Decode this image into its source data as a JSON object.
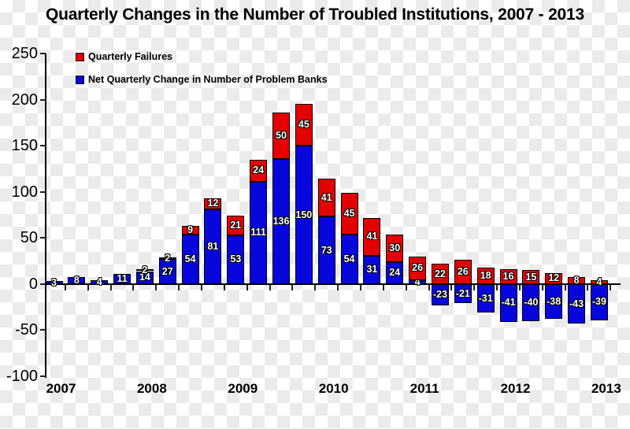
{
  "title": "Quarterly Changes in the Number of Troubled Institutions, 2007 - 2013",
  "legend": {
    "items": [
      {
        "label": "Quarterly Failures",
        "color": "#e40000"
      },
      {
        "label": "Net Quarterly Change in Number of Problem Banks",
        "color": "#0707dd"
      }
    ]
  },
  "chart_data": {
    "type": "bar",
    "stacked": true,
    "title": "Quarterly Changes in the Number of Troubled Institutions, 2007 - 2013",
    "x_year_labels": [
      "2007",
      "2008",
      "2009",
      "2010",
      "2011",
      "2012",
      "2013"
    ],
    "quarters_per_year": 4,
    "series": [
      {
        "name": "Net Quarterly Change in Number of Problem Banks",
        "color": "#0707dd",
        "values": [
          3,
          8,
          4,
          11,
          14,
          27,
          54,
          81,
          53,
          111,
          136,
          150,
          73,
          54,
          31,
          24,
          4,
          -23,
          -21,
          -31,
          -41,
          -40,
          -38,
          -43,
          -39
        ]
      },
      {
        "name": "Quarterly Failures",
        "color": "#e40000",
        "values": [
          0,
          0,
          0,
          0,
          2,
          2,
          9,
          12,
          21,
          24,
          50,
          45,
          41,
          45,
          41,
          30,
          26,
          22,
          26,
          18,
          16,
          15,
          12,
          8,
          4
        ]
      }
    ],
    "y_ticks": [
      250,
      200,
      150,
      100,
      50,
      0,
      -50,
      -100
    ],
    "ylim": [
      -100,
      250
    ],
    "grid": false,
    "legend_position": "top-left",
    "bar_label_color": "#ffffff"
  }
}
